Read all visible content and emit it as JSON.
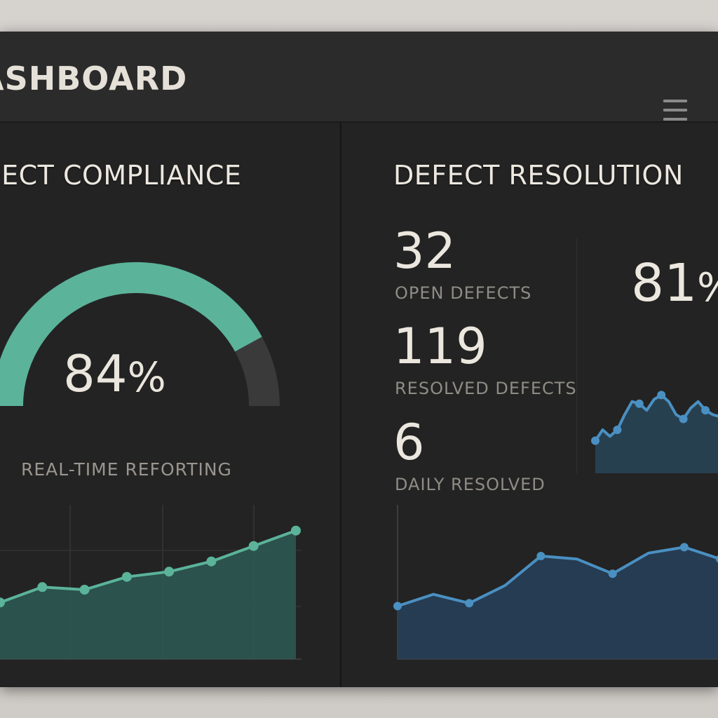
{
  "app": {
    "title": "ASHBOARD"
  },
  "icons": {
    "menu": "hamburger-menu-icon"
  },
  "colors": {
    "background": "#222222",
    "compliance": "#5bb39a",
    "compliance_track": "#3a3a3a",
    "defects": "#4a90c2"
  },
  "compliance": {
    "title": "OJECT COMPLIANCE",
    "value": "84",
    "unit": "%",
    "caption": "REAL-TIME REFORTING",
    "progress": 0.84
  },
  "defects": {
    "title": "DEFECT RESOLUTION",
    "stats": [
      {
        "value": "32",
        "label": "OPEN DEFECTS"
      },
      {
        "value": "119",
        "label": "RESOLVED DEFECTS"
      },
      {
        "value": "6",
        "label": "DAILY RESOLVED"
      }
    ],
    "side_value": "81",
    "side_unit": "%"
  },
  "chart_data": [
    {
      "type": "area",
      "x": [
        1,
        2,
        3,
        4,
        5,
        6,
        7,
        8
      ],
      "values": [
        52,
        58,
        57,
        62,
        64,
        68,
        74,
        80
      ],
      "ylim": [
        30,
        90
      ],
      "grid": true
    },
    {
      "type": "area",
      "x": [
        1,
        2,
        3,
        4,
        5,
        6,
        7,
        8,
        9,
        10,
        11,
        12,
        13,
        14,
        15,
        16,
        17,
        18
      ],
      "values": [
        35,
        40,
        37,
        40,
        47,
        53,
        52,
        49,
        54,
        56,
        53,
        47,
        45,
        50,
        53,
        49,
        47,
        46
      ],
      "ylim": [
        20,
        70
      ],
      "grid": false
    },
    {
      "type": "area",
      "x": [
        1,
        2,
        3,
        4,
        5,
        6,
        7,
        8,
        9,
        10
      ],
      "values": [
        38,
        42,
        39,
        45,
        55,
        54,
        49,
        56,
        58,
        54
      ],
      "ylim": [
        20,
        70
      ],
      "grid": true
    }
  ]
}
